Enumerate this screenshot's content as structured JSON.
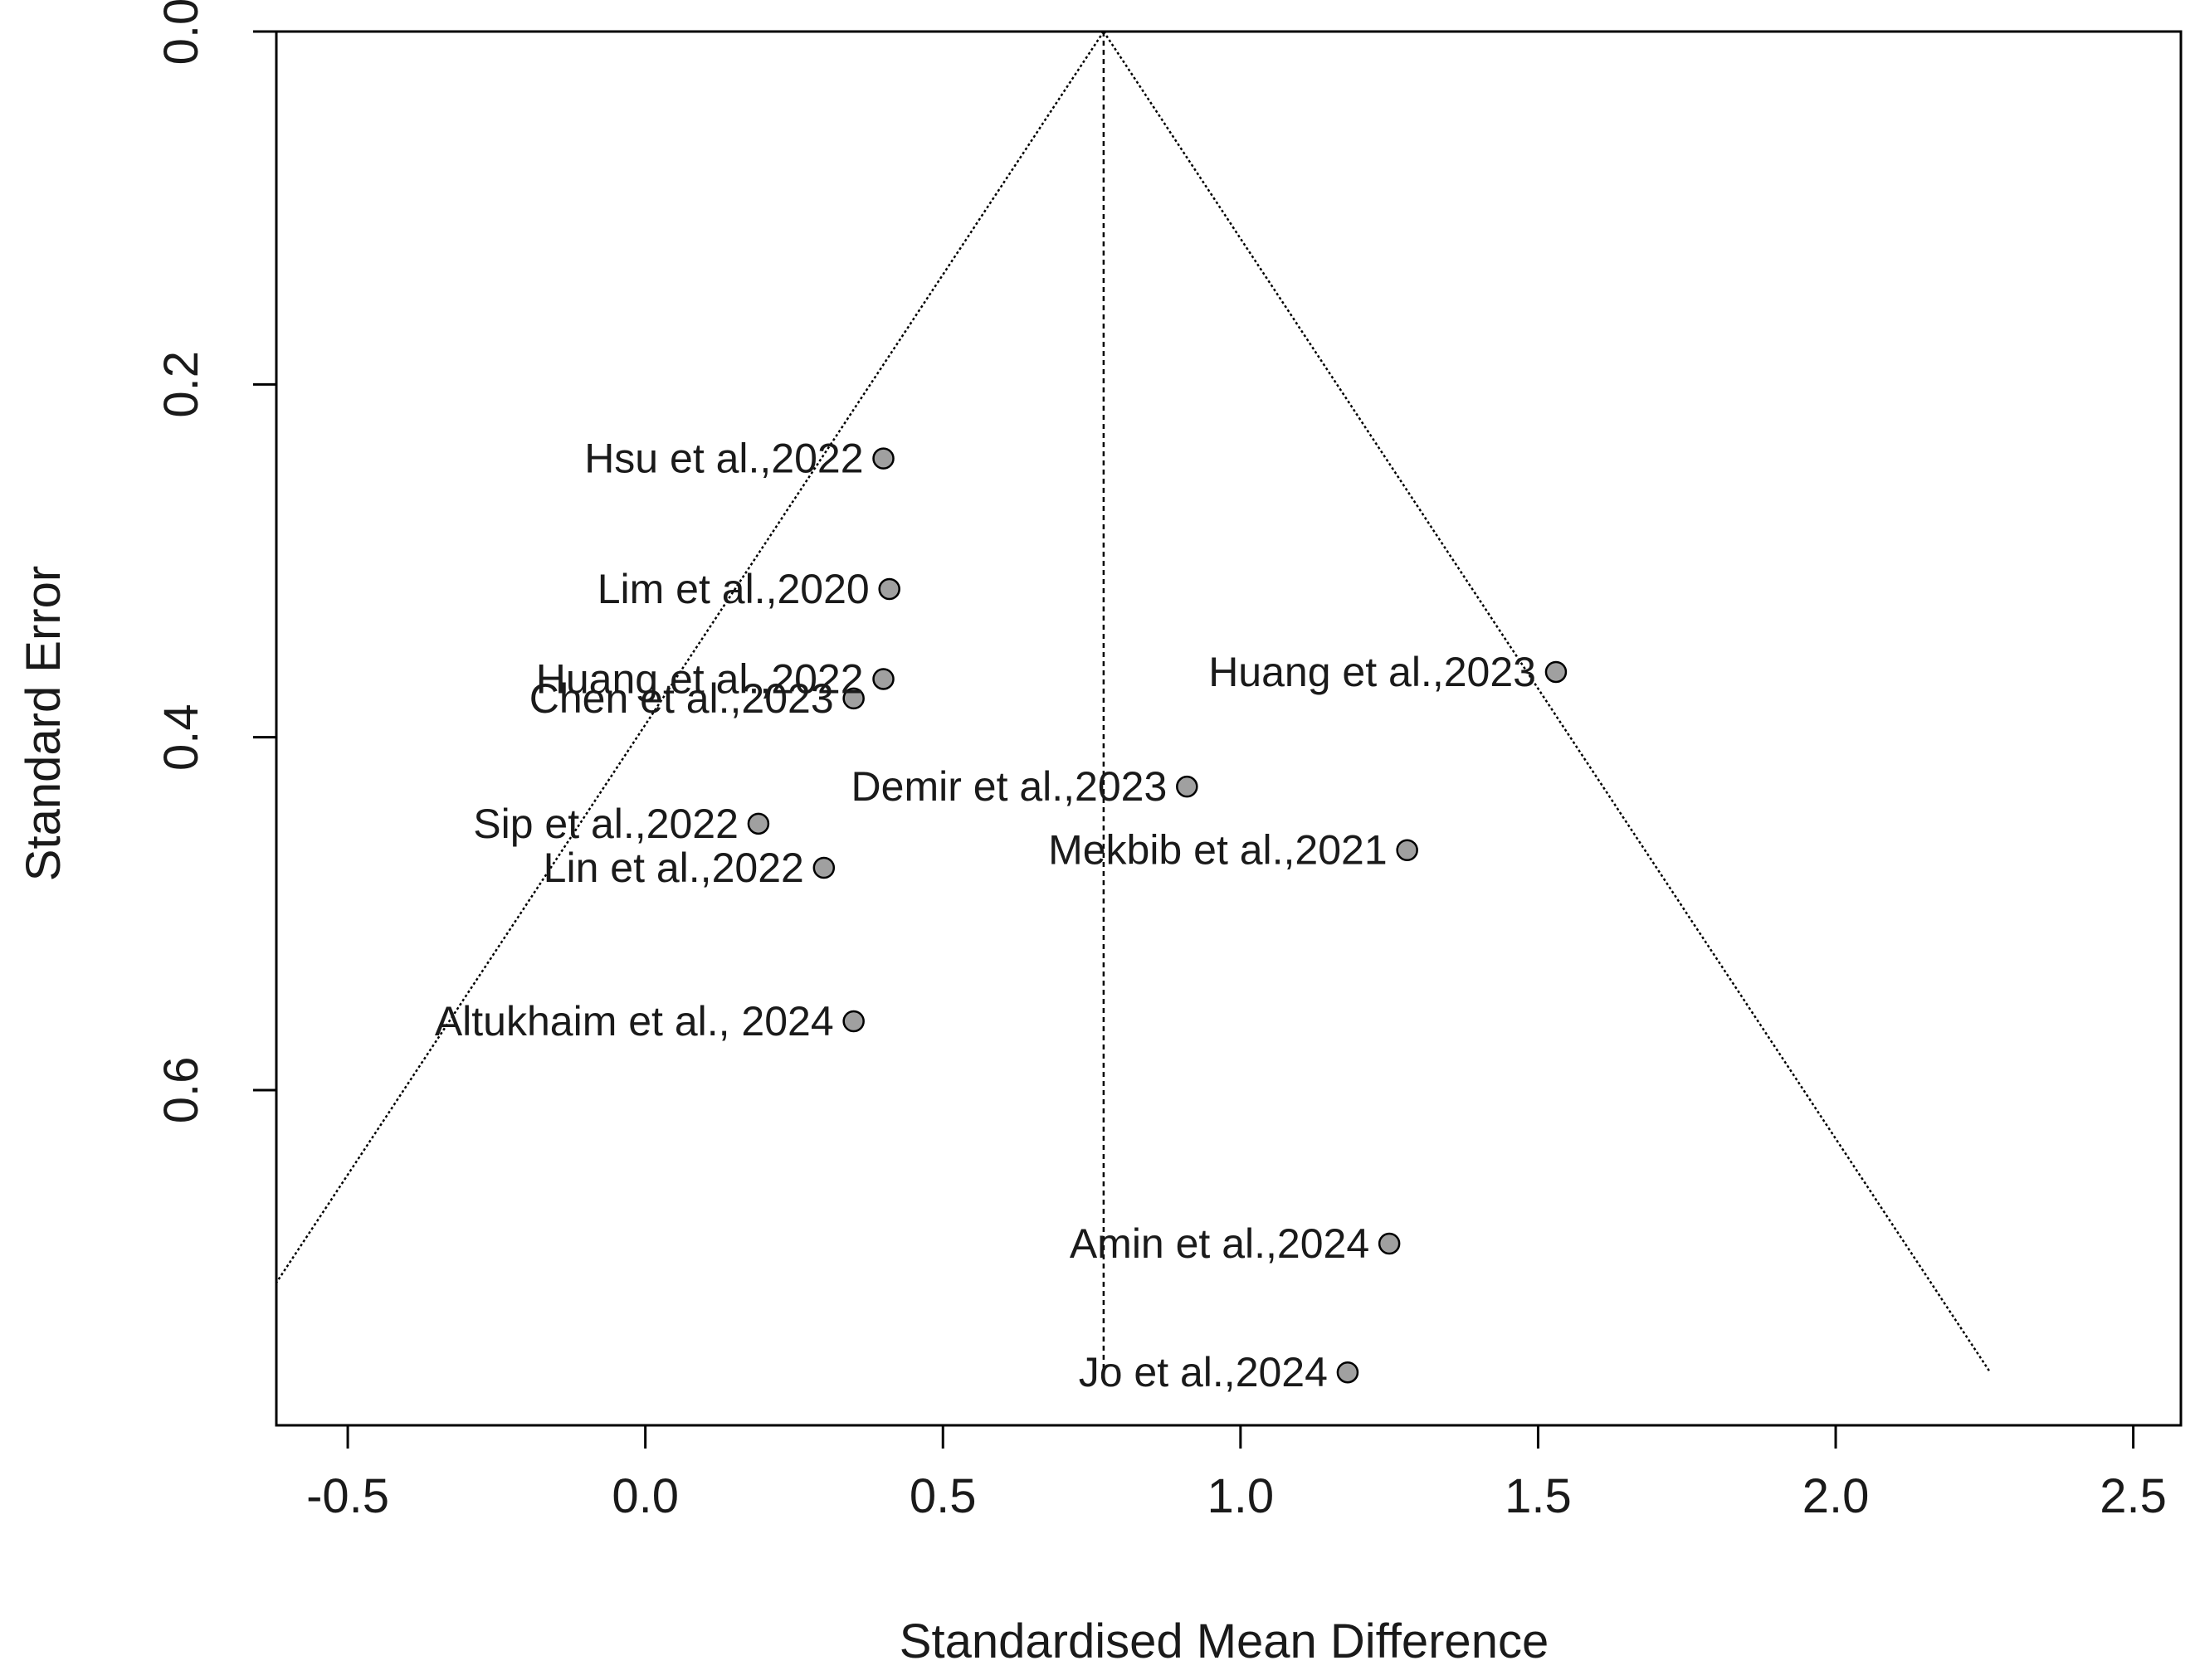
{
  "chart_data": {
    "type": "scatter",
    "subtype": "funnel",
    "title": "",
    "xlabel": "Standardised Mean Difference",
    "ylabel": "Standard Error",
    "xlim": [
      -0.62,
      2.58
    ],
    "ylim": [
      0.0,
      0.79
    ],
    "y_reversed": true,
    "x_ticks": [
      -0.5,
      0.0,
      0.5,
      1.0,
      1.5,
      2.0,
      2.5
    ],
    "x_tick_labels": [
      "-0.5",
      "0.0",
      "0.5",
      "1.0",
      "1.5",
      "2.0",
      "2.5"
    ],
    "y_ticks": [
      0.0,
      0.2,
      0.4,
      0.6
    ],
    "y_tick_labels": [
      "0.0",
      "0.2",
      "0.4",
      "0.6"
    ],
    "pooled_estimate": 0.77,
    "funnel_max_se": 0.76,
    "grid": false,
    "legend": "none",
    "point_color": "#a0a0a0",
    "points": [
      {
        "label": "Hsu et al.,2022",
        "x": 0.4,
        "y": 0.242
      },
      {
        "label": "Lim et al.,2020",
        "x": 0.41,
        "y": 0.316
      },
      {
        "label": "Huang et al.,2022",
        "x": 0.4,
        "y": 0.367
      },
      {
        "label": "Chen et al.,2023",
        "x": 0.35,
        "y": 0.378
      },
      {
        "label": "Huang et al.,2023",
        "x": 1.53,
        "y": 0.363
      },
      {
        "label": "Demir et al.,2023",
        "x": 0.91,
        "y": 0.428
      },
      {
        "label": "Sip et al.,2022",
        "x": 0.19,
        "y": 0.449
      },
      {
        "label": "Mekbib et al.,2021",
        "x": 1.28,
        "y": 0.464
      },
      {
        "label": "Lin et al.,2022",
        "x": 0.3,
        "y": 0.474
      },
      {
        "label": "Altukhaim et al., 2024",
        "x": 0.35,
        "y": 0.561
      },
      {
        "label": "Amin et al.,2024",
        "x": 1.25,
        "y": 0.687
      },
      {
        "label": "Jo et al.,2024",
        "x": 1.18,
        "y": 0.76
      }
    ]
  }
}
